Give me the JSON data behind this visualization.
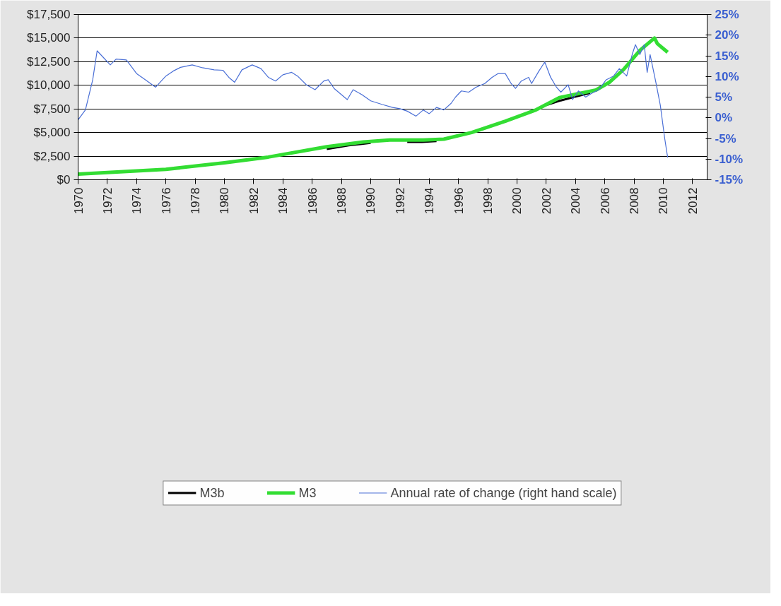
{
  "chart_data": {
    "type": "line",
    "xlim": [
      1970,
      2013
    ],
    "xticks": [
      1970,
      1972,
      1974,
      1976,
      1978,
      1980,
      1982,
      1984,
      1986,
      1988,
      1990,
      1992,
      1994,
      1996,
      1998,
      2000,
      2002,
      2004,
      2006,
      2008,
      2010,
      2012
    ],
    "ylim": [
      0,
      17500
    ],
    "yticks": [
      {
        "value": 0,
        "label": "$0"
      },
      {
        "value": 2500,
        "label": "$2,500"
      },
      {
        "value": 5000,
        "label": "$5,000"
      },
      {
        "value": 7500,
        "label": "$7,500"
      },
      {
        "value": 10000,
        "label": "$10,000"
      },
      {
        "value": 12500,
        "label": "$12,500"
      },
      {
        "value": 15000,
        "label": "$15,000"
      },
      {
        "value": 17500,
        "label": "$17,500"
      }
    ],
    "y2lim": [
      -15,
      25
    ],
    "y2ticks": [
      {
        "value": -15,
        "label": "-15%"
      },
      {
        "value": -10,
        "label": "-10%"
      },
      {
        "value": -5,
        "label": "-5%"
      },
      {
        "value": 0,
        "label": "0%"
      },
      {
        "value": 5,
        "label": "5%"
      },
      {
        "value": 10,
        "label": "10%"
      },
      {
        "value": 15,
        "label": "15%"
      },
      {
        "value": 20,
        "label": "20%"
      },
      {
        "value": 25,
        "label": "25%"
      }
    ],
    "grid": "y",
    "legend": "bottom",
    "marker": "none",
    "series": [
      {
        "name": "M3b",
        "color": "#000000",
        "x": [
          1987,
          1988.5,
          1990,
          1991,
          1992.5,
          1993.5,
          1994.5,
          1995,
          2002,
          2003,
          2004,
          2005
        ],
        "values": [
          3250,
          3650,
          3900,
          null,
          4000,
          4000,
          4100,
          null,
          7900,
          8400,
          8800,
          9200
        ]
      },
      {
        "name": "M3",
        "color": "#33dd33",
        "x": [
          1970,
          1976,
          1980,
          1983,
          1987,
          1989.5,
          1991.3,
          1993.6,
          1995,
          1996.9,
          1999.2,
          2001.3,
          2002.9,
          2005.4,
          2006.3,
          2007.3,
          2008.4,
          2009.4,
          2009.6,
          2010.3
        ],
        "values": [
          600,
          1100,
          1800,
          2400,
          3500,
          4000,
          4200,
          4200,
          4300,
          5000,
          6200,
          7400,
          8700,
          9500,
          10300,
          11700,
          13700,
          15000,
          14400,
          13500
        ]
      },
      {
        "name": "Annual rate of change (right hand scale)",
        "color": "#4a6fd6",
        "axis": "y2",
        "x": [
          1970.0,
          1970.5,
          1971.0,
          1971.3,
          1971.7,
          1972.2,
          1972.6,
          1973.3,
          1974.0,
          1974.6,
          1975.3,
          1976.0,
          1976.5,
          1977.0,
          1977.8,
          1978.5,
          1979.3,
          1979.9,
          1980.3,
          1980.7,
          1981.2,
          1981.9,
          1982.5,
          1983.0,
          1983.5,
          1984.0,
          1984.6,
          1985.0,
          1985.6,
          1986.2,
          1986.8,
          1987.1,
          1987.5,
          1988.0,
          1988.4,
          1988.8,
          1989.4,
          1990.0,
          1990.8,
          1991.5,
          1992.0,
          1992.5,
          1993.1,
          1993.6,
          1994.0,
          1994.5,
          1995.0,
          1995.5,
          1995.8,
          1996.2,
          1996.7,
          1997.2,
          1997.8,
          1998.3,
          1998.7,
          1999.2,
          1999.6,
          1999.9,
          2000.3,
          2000.8,
          2001.0,
          2001.5,
          2001.9,
          2002.3,
          2002.7,
          2003.0,
          2003.5,
          2003.8,
          2004.2,
          2004.7,
          2005.1,
          2005.6,
          2006.1,
          2006.6,
          2007.0,
          2007.5,
          2007.9,
          2008.1,
          2008.4,
          2008.7,
          2008.9,
          2009.1,
          2009.5,
          2009.8,
          2010.1,
          2010.3
        ],
        "values": [
          -0.5,
          1.9,
          9.2,
          16.2,
          14.7,
          12.8,
          14.2,
          14,
          10.7,
          9.2,
          7.4,
          10.1,
          11.3,
          12.2,
          12.8,
          12.1,
          11.6,
          11.5,
          9.8,
          8.6,
          11.6,
          12.8,
          11.9,
          9.8,
          8.9,
          10.4,
          11,
          10.1,
          8,
          6.8,
          8.9,
          9.2,
          7.1,
          5.6,
          4.4,
          6.8,
          5.6,
          4.1,
          3.2,
          2.5,
          2.2,
          1.6,
          0.4,
          1.9,
          1,
          2.5,
          1.9,
          3.5,
          5,
          6.5,
          6.2,
          7.4,
          8.3,
          9.8,
          10.7,
          10.7,
          8.3,
          7.1,
          8.9,
          9.8,
          8.3,
          11.3,
          13.5,
          9.8,
          7.4,
          6.2,
          8,
          4.4,
          6.5,
          5,
          5.9,
          6.8,
          9.2,
          10.1,
          11.9,
          10.1,
          15.6,
          17.7,
          15.3,
          17.7,
          11,
          15.3,
          8.5,
          3,
          -5,
          -9.6
        ]
      }
    ]
  }
}
